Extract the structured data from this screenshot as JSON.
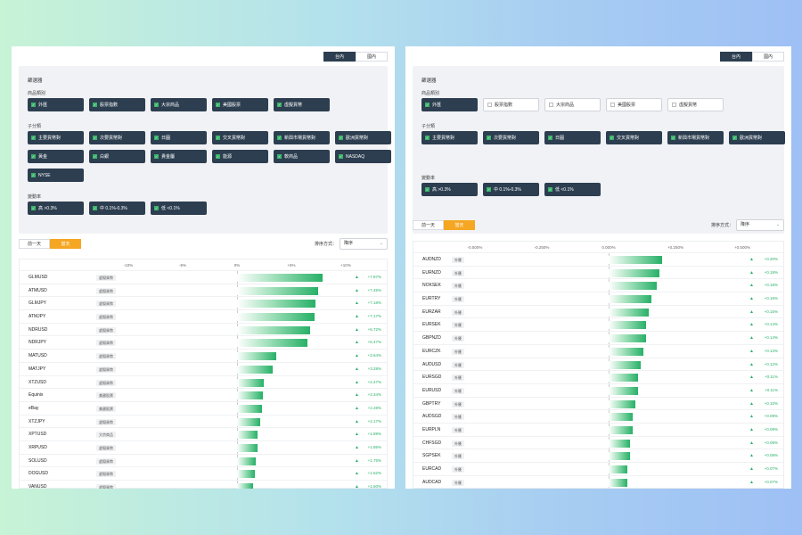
{
  "left": {
    "top_buttons": [
      "台內",
      "國內"
    ],
    "filter_title": "篩選器",
    "groups": [
      {
        "label": "商品類別",
        "items": [
          {
            "text": "外匯",
            "checked": true
          },
          {
            "text": "股票指數",
            "checked": true
          },
          {
            "text": "大宗商品",
            "checked": true
          },
          {
            "text": "美國股票",
            "checked": true
          },
          {
            "text": "虛擬貨幣",
            "checked": true
          }
        ]
      },
      {
        "label": "子分類",
        "items": [
          {
            "text": "主要貨幣對",
            "checked": true
          },
          {
            "text": "次要貨幣對",
            "checked": true
          },
          {
            "text": "日圓",
            "checked": true
          },
          {
            "text": "交叉貨幣對",
            "checked": true
          },
          {
            "text": "新興市場貨幣對",
            "checked": true
          },
          {
            "text": "歐洲貨幣對",
            "checked": true
          },
          {
            "text": "黃金",
            "checked": true
          },
          {
            "text": "白銀",
            "checked": true
          },
          {
            "text": "貴金屬",
            "checked": true
          },
          {
            "text": "能源",
            "checked": true
          },
          {
            "text": "軟商品",
            "checked": true
          },
          {
            "text": "NASDAQ",
            "checked": true
          },
          {
            "text": "NYSE",
            "checked": true
          }
        ]
      },
      {
        "label": "變動率",
        "items": [
          {
            "text": "高 >0.3%",
            "checked": true
          },
          {
            "text": "中 0.1%-0.3%",
            "checked": true
          },
          {
            "text": "低 <0.1%",
            "checked": true
          }
        ]
      }
    ],
    "day_buttons": [
      "前一天",
      "當天"
    ],
    "sort_label": "排序方式：",
    "sort_value": "降序",
    "axis_ticks": [
      {
        "label": "-10%",
        "v": -10
      },
      {
        "label": "-5%",
        "v": -5
      },
      {
        "label": "0%",
        "v": 0
      },
      {
        "label": "+5%",
        "v": 5
      },
      {
        "label": "+10%",
        "v": 10
      }
    ],
    "axis_min": -10,
    "axis_max": 10,
    "rows": [
      {
        "symbol": "GLMUSD",
        "tag": "虛擬貨幣",
        "value": 7.87,
        "label": "+7.87%"
      },
      {
        "symbol": "ATMUSD",
        "tag": "虛擬貨幣",
        "value": 7.45,
        "label": "+7.45%"
      },
      {
        "symbol": "GLMJPY",
        "tag": "虛擬貨幣",
        "value": 7.18,
        "label": "+7.18%"
      },
      {
        "symbol": "ATMJPY",
        "tag": "虛擬貨幣",
        "value": 7.17,
        "label": "+7.17%"
      },
      {
        "symbol": "NDRUSD",
        "tag": "虛擬貨幣",
        "value": 6.72,
        "label": "+6.72%"
      },
      {
        "symbol": "NDRJPY",
        "tag": "虛擬貨幣",
        "value": 6.47,
        "label": "+6.47%"
      },
      {
        "symbol": "MATUSD",
        "tag": "虛擬貨幣",
        "value": 3.64,
        "label": "+3.64%"
      },
      {
        "symbol": "MATJPY",
        "tag": "虛擬貨幣",
        "value": 3.28,
        "label": "+3.28%"
      },
      {
        "symbol": "XTZUSD",
        "tag": "虛擬貨幣",
        "value": 2.47,
        "label": "+2.47%"
      },
      {
        "symbol": "Equinix",
        "tag": "美國股票",
        "value": 2.34,
        "label": "+2.34%"
      },
      {
        "symbol": "eBay",
        "tag": "美國股票",
        "value": 2.28,
        "label": "+2.28%"
      },
      {
        "symbol": "XTZJPY",
        "tag": "虛擬貨幣",
        "value": 2.17,
        "label": "+2.17%"
      },
      {
        "symbol": "XPTUSD",
        "tag": "大宗商品",
        "value": 1.89,
        "label": "+1.89%"
      },
      {
        "symbol": "XRPUSD",
        "tag": "虛擬貨幣",
        "value": 1.85,
        "label": "+1.85%"
      },
      {
        "symbol": "SOLUSD",
        "tag": "虛擬貨幣",
        "value": 1.75,
        "label": "+1.75%"
      },
      {
        "symbol": "DOGUSD",
        "tag": "虛擬貨幣",
        "value": 1.62,
        "label": "+1.62%"
      },
      {
        "symbol": "VANUSD",
        "tag": "虛擬貨幣",
        "value": 1.5,
        "label": "+1.50%"
      }
    ]
  },
  "right": {
    "top_buttons": [
      "台內",
      "國內"
    ],
    "filter_title": "篩選器",
    "groups": [
      {
        "label": "商品類別",
        "items": [
          {
            "text": "外匯",
            "checked": true
          },
          {
            "text": "股票指數",
            "checked": false
          },
          {
            "text": "大宗商品",
            "checked": false
          },
          {
            "text": "美國股票",
            "checked": false
          },
          {
            "text": "虛擬貨幣",
            "checked": false
          }
        ]
      },
      {
        "label": "子分類",
        "items": [
          {
            "text": "主要貨幣對",
            "checked": true
          },
          {
            "text": "次要貨幣對",
            "checked": true
          },
          {
            "text": "日圓",
            "checked": true
          },
          {
            "text": "交叉貨幣對",
            "checked": true
          },
          {
            "text": "新興市場貨幣對",
            "checked": true
          },
          {
            "text": "歐洲貨幣對",
            "checked": true
          }
        ]
      },
      {
        "label": "變動率",
        "items": [
          {
            "text": "高 >0.3%",
            "checked": true
          },
          {
            "text": "中 0.1%-0.3%",
            "checked": true
          },
          {
            "text": "低 <0.1%",
            "checked": true
          }
        ]
      }
    ],
    "day_buttons": [
      "前一天",
      "當天"
    ],
    "sort_label": "排序方式：",
    "sort_value": "降序",
    "axis_ticks": [
      {
        "label": "-0.500%",
        "v": -0.5
      },
      {
        "label": "-0.250%",
        "v": -0.25
      },
      {
        "label": "0.000%",
        "v": 0
      },
      {
        "label": "+0.250%",
        "v": 0.25
      },
      {
        "label": "+0.500%",
        "v": 0.5
      }
    ],
    "axis_min": -0.5,
    "axis_max": 0.5,
    "rows": [
      {
        "symbol": "AUDNZD",
        "tag": "外匯",
        "value": 0.2,
        "label": "+0.20%"
      },
      {
        "symbol": "EURNZD",
        "tag": "外匯",
        "value": 0.19,
        "label": "+0.19%"
      },
      {
        "symbol": "NOKSEK",
        "tag": "外匯",
        "value": 0.18,
        "label": "+0.18%"
      },
      {
        "symbol": "EURTRY",
        "tag": "外匯",
        "value": 0.16,
        "label": "+0.16%"
      },
      {
        "symbol": "EURZAR",
        "tag": "外匯",
        "value": 0.15,
        "label": "+0.15%"
      },
      {
        "symbol": "EURSEK",
        "tag": "外匯",
        "value": 0.14,
        "label": "+0.14%"
      },
      {
        "symbol": "GBPNZD",
        "tag": "外匯",
        "value": 0.14,
        "label": "+0.14%"
      },
      {
        "symbol": "EURCZK",
        "tag": "外匯",
        "value": 0.13,
        "label": "+0.13%"
      },
      {
        "symbol": "AUDUSD",
        "tag": "外匯",
        "value": 0.12,
        "label": "+0.12%"
      },
      {
        "symbol": "EURSGD",
        "tag": "外匯",
        "value": 0.11,
        "label": "+0.11%"
      },
      {
        "symbol": "EURUSD",
        "tag": "外匯",
        "value": 0.11,
        "label": "+0.11%"
      },
      {
        "symbol": "GBPTRY",
        "tag": "外匯",
        "value": 0.1,
        "label": "+0.10%"
      },
      {
        "symbol": "AUDSGD",
        "tag": "外匯",
        "value": 0.09,
        "label": "+0.09%"
      },
      {
        "symbol": "EURPLN",
        "tag": "外匯",
        "value": 0.09,
        "label": "+0.09%"
      },
      {
        "symbol": "CHFSGD",
        "tag": "外匯",
        "value": 0.08,
        "label": "+0.08%"
      },
      {
        "symbol": "SGPSEK",
        "tag": "外匯",
        "value": 0.08,
        "label": "+0.08%"
      },
      {
        "symbol": "EURCAD",
        "tag": "外匯",
        "value": 0.07,
        "label": "+0.07%"
      },
      {
        "symbol": "AUDCAD",
        "tag": "外匯",
        "value": 0.07,
        "label": "+0.07%"
      }
    ]
  },
  "colors": {
    "navy": "#2c3e50",
    "orange": "#f5a623",
    "green": "#27b067"
  },
  "icons": {
    "check": "check-icon",
    "up": "arrow-up-icon",
    "chevron": "chevron-down-icon"
  }
}
